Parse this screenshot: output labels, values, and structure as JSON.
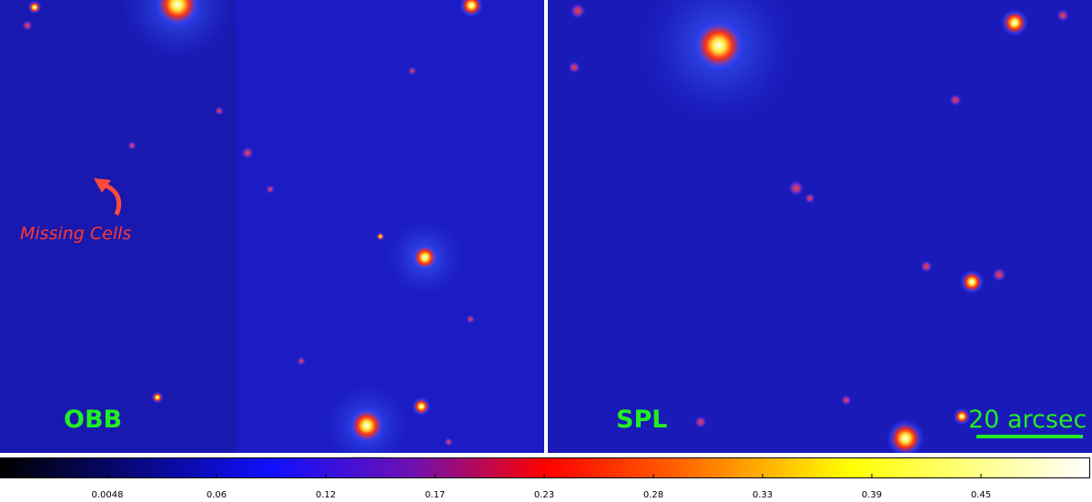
{
  "panels": [
    {
      "label": "OBB"
    },
    {
      "label": "SPL"
    }
  ],
  "annotation": "Missing Cells",
  "scale_bar": "20 arcsec",
  "colorbar": {
    "ticks": [
      0.0048,
      0.06,
      0.12,
      0.17,
      0.23,
      0.28,
      0.33,
      0.39,
      0.45
    ]
  }
}
